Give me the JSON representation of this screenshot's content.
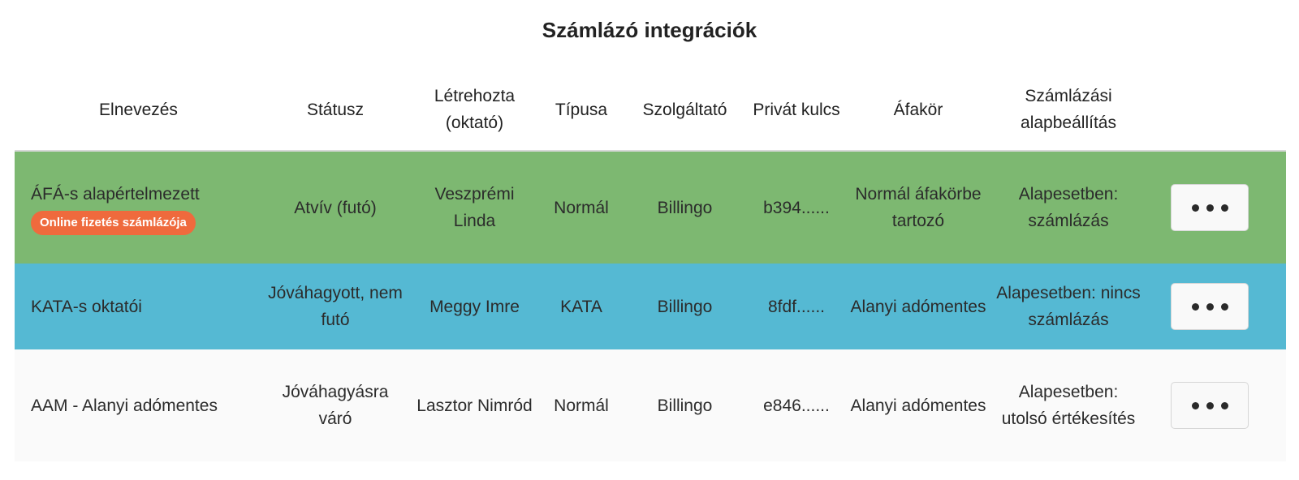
{
  "page": {
    "title": "Számlázó integrációk"
  },
  "columns": {
    "name": "Elnevezés",
    "status": "Státusz",
    "creator": "Létrehozta (oktató)",
    "type": "Típusa",
    "provider": "Szolgáltató",
    "private_key": "Privát kulcs",
    "vat": "Áfakör",
    "default": "Számlázási alapbeállítás"
  },
  "rows": [
    {
      "name": "ÁFÁ-s alapértelmezett",
      "badge": "Online fizetés számlázója",
      "status": "Atvív (futó)",
      "creator": "Veszprémi Linda",
      "type": "Normál",
      "provider": "Billingo",
      "private_key": "b394......",
      "vat": "Normál áfakörbe tartozó",
      "default": "Alapesetben: számlázás",
      "row_color": "#7db871"
    },
    {
      "name": "KATA-s oktatói",
      "status": "Jóváhagyott, nem futó",
      "creator": "Meggy Imre",
      "type": "KATA",
      "provider": "Billingo",
      "private_key": "8fdf......",
      "vat": "Alanyi adómentes",
      "default": "Alapesetben: nincs számlázás",
      "row_color": "#55b9d3"
    },
    {
      "name": "AAM - Alanyi adómentes",
      "status": "Jóváhagyásra váró",
      "creator": "Lasztor Nimród",
      "type": "Normál",
      "provider": "Billingo",
      "private_key": "e846......",
      "vat": "Alanyi adómentes",
      "default": "Alapesetben: utolsó értékesítés",
      "row_color": "#fafafa"
    }
  ],
  "icons": {
    "actions": "more-horizontal-icon"
  },
  "colors": {
    "badge": "#ef6a3d"
  }
}
